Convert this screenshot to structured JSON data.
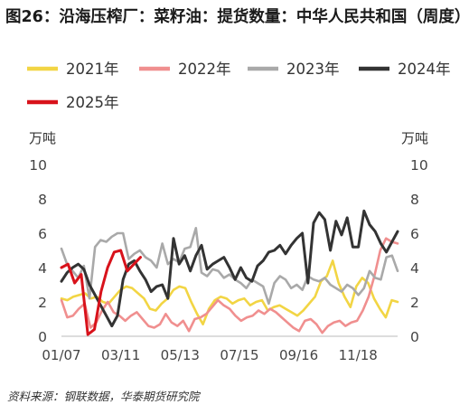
{
  "title": "图26：沿海压榨厂：菜籽油：提货数量：中华人民共和国（周度）",
  "source": "资料来源：钢联数据，华泰期货研究院",
  "chart_data": {
    "type": "line",
    "yunit_left": "万吨",
    "yunit_right": "万吨",
    "ylim": [
      0,
      10
    ],
    "yticks": [
      0,
      2,
      4,
      6,
      8,
      10
    ],
    "week_count": 52,
    "xtick_labels": [
      "01/07",
      "03/11",
      "05/13",
      "07/15",
      "09/16",
      "11/18"
    ],
    "xtick_weeks": [
      1,
      10,
      19,
      28,
      37,
      46
    ],
    "grid": false,
    "legend_position": "top",
    "colors": {
      "2021年": "#f2d544",
      "2022年": "#f08f8f",
      "2023年": "#a9a9a9",
      "2024年": "#333333",
      "2025年": "#d8121b"
    },
    "series": [
      {
        "name": "2021年",
        "values": [
          2.2,
          2.1,
          2.3,
          2.4,
          2.5,
          2.2,
          2.3,
          2.0,
          1.9,
          2.3,
          2.7,
          2.9,
          2.8,
          2.5,
          2.2,
          1.6,
          1.5,
          1.9,
          2.2,
          2.7,
          2.9,
          2.8,
          2.0,
          1.3,
          0.7,
          1.6,
          2.1,
          2.3,
          2.2,
          1.9,
          2.1,
          2.2,
          1.8,
          2.0,
          2.1,
          1.5,
          1.7,
          1.8,
          1.6,
          1.4,
          1.2,
          1.5,
          1.9,
          2.3,
          3.2,
          3.5,
          4.4,
          3.1,
          2.3,
          1.7,
          2.9,
          3.4,
          3.1,
          2.2,
          1.6,
          1.1,
          2.1,
          2.0
        ]
      },
      {
        "name": "2022年",
        "values": [
          2.1,
          1.1,
          1.2,
          1.6,
          1.9,
          0.5,
          0.8,
          1.5,
          2.0,
          1.4,
          1.2,
          0.9,
          1.2,
          1.4,
          1.0,
          0.6,
          0.5,
          0.7,
          1.3,
          0.8,
          0.6,
          0.9,
          0.3,
          1.0,
          1.1,
          1.3,
          1.7,
          2.1,
          1.8,
          1.6,
          1.2,
          0.9,
          1.1,
          1.2,
          1.5,
          1.3,
          1.6,
          1.4,
          1.1,
          0.8,
          0.5,
          0.3,
          0.9,
          1.0,
          0.7,
          0.2,
          0.6,
          0.8,
          0.9,
          0.6,
          0.8,
          0.9,
          1.5,
          2.3,
          3.5,
          5.0,
          5.7,
          5.5,
          5.4
        ]
      },
      {
        "name": "2023年",
        "values": [
          5.1,
          4.2,
          3.8,
          3.4,
          4.1,
          2.2,
          5.2,
          5.6,
          5.5,
          5.8,
          6.0,
          6.0,
          4.5,
          4.8,
          5.0,
          4.6,
          4.4,
          4.0,
          5.4,
          4.2,
          4.5,
          4.3,
          5.1,
          5.2,
          6.3,
          3.7,
          3.5,
          3.9,
          3.8,
          3.4,
          3.6,
          3.3,
          3.1,
          2.8,
          3.3,
          3.1,
          2.9,
          1.9,
          3.1,
          3.5,
          3.3,
          2.8,
          3.0,
          2.7,
          3.5,
          3.3,
          3.2,
          3.4,
          3.0,
          2.8,
          2.6,
          3.0,
          2.8,
          2.4,
          2.8,
          3.8,
          3.4,
          3.3,
          4.6,
          4.7,
          3.8
        ]
      },
      {
        "name": "2024年",
        "values": [
          3.2,
          3.7,
          4.0,
          4.2,
          3.9,
          3.0,
          2.4,
          1.8,
          1.2,
          0.6,
          1.2,
          3.3,
          4.2,
          4.4,
          3.8,
          3.3,
          2.6,
          2.9,
          3.0,
          2.2,
          5.7,
          4.2,
          4.7,
          3.8,
          4.7,
          5.3,
          3.9,
          4.2,
          4.4,
          4.6,
          4.0,
          3.3,
          4.0,
          3.4,
          3.2,
          4.1,
          4.4,
          4.9,
          5.0,
          5.3,
          4.8,
          5.3,
          5.7,
          6.0,
          3.1,
          6.6,
          7.2,
          6.8,
          5.0,
          6.7,
          5.9,
          6.9,
          5.2,
          5.2,
          7.3,
          6.5,
          6.1,
          5.4,
          4.9,
          5.5,
          6.1
        ]
      },
      {
        "name": "2025年",
        "values": [
          4.0,
          4.2,
          3.1,
          3.6,
          0.1,
          0.4,
          2.6,
          4.0,
          4.9,
          5.0,
          3.8,
          4.2,
          4.6
        ]
      }
    ]
  }
}
